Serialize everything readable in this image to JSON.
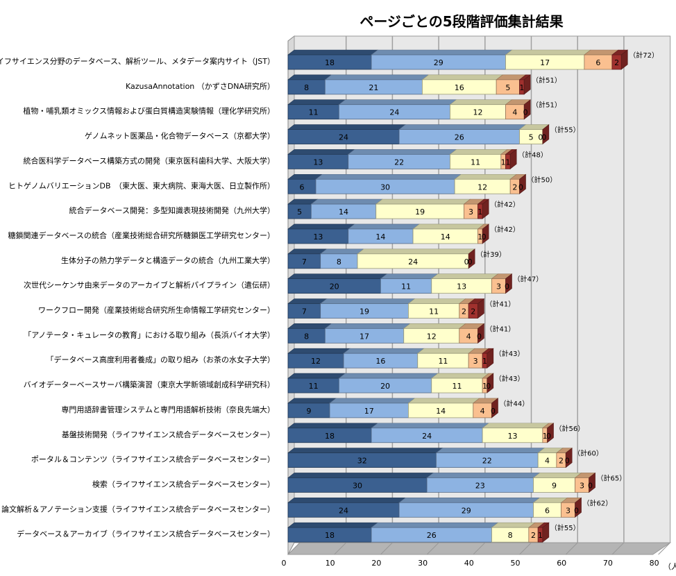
{
  "chart_data": {
    "type": "bar",
    "orientation": "horizontal",
    "stacked": true,
    "style": "3d",
    "title": "ページごとの5段階評価集計結果",
    "xlabel": "",
    "unit_label": "（人",
    "xlim": [
      0,
      80
    ],
    "xticks": [
      0,
      10,
      20,
      30,
      40,
      50,
      60,
      70,
      80
    ],
    "grid": true,
    "legend": "none",
    "total_prefix": "（計",
    "total_suffix": "）",
    "colors": [
      "#3b6090",
      "#8db3e2",
      "#ffffcc",
      "#fac090",
      "#a0312e"
    ],
    "categories": [
      "ライフサイエンス分野のデータベース、解析ツール、メタデータ案内サイト（JST）",
      "KazusaAnnotation （かずさDNA研究所）",
      "植物・哺乳類オミックス情報および蛋白質構造実験情報（理化学研究所）",
      "ゲノムネット医薬品・化合物データベース（京都大学）",
      "統合医科学データベース構築方式の開発（東京医科歯科大学、大阪大学）",
      "ヒトゲノムバリエーションDB　（東大医、東大病院、東海大医、日立製作所）",
      "統合データベース開発：多型知識表現技術開発（九州大学）",
      "糖鎖関連データベースの統合（産業技術総合研究所糖鎖医工学研究センター）",
      "生体分子の熱力学データと構造データの統合（九州工業大学）",
      "次世代シーケンサ由来データのアーカイブと解析パイプライン（遺伝研）",
      "ワークフロー開発（産業技術総合研究所生命情報工学研究センター）",
      "「アノテータ・キュレータの教育」における取り組み（長浜バイオ大学）",
      "「データベース高度利用者養成」の取り組み（お茶の水女子大学）",
      "バイオデーターベースサーバ構築演習（東京大学新領域創成科学研究科）",
      "専門用語辞書管理システムと専門用語解析技術（奈良先端大）",
      "基盤技術開発（ライフサイエンス統合データベースセンター）",
      "ポータル＆コンテンツ（ライフサイエンス統合データベースセンター）",
      "検索（ライフサイエンス統合データベースセンター）",
      "論文解析＆アノテーション支援（ライフサイエンス統合データベースセンター）",
      "データベース＆アーカイブ（ライフサイエンス統合データベースセンター）"
    ],
    "values": [
      [
        18,
        29,
        17,
        6,
        2
      ],
      [
        8,
        21,
        16,
        5,
        1
      ],
      [
        11,
        24,
        12,
        4,
        0
      ],
      [
        24,
        26,
        5,
        0,
        0
      ],
      [
        13,
        22,
        11,
        1,
        1
      ],
      [
        6,
        30,
        12,
        2,
        0
      ],
      [
        5,
        14,
        19,
        3,
        1
      ],
      [
        13,
        14,
        14,
        1,
        0
      ],
      [
        7,
        8,
        24,
        0,
        0
      ],
      [
        20,
        11,
        13,
        3,
        0
      ],
      [
        7,
        19,
        11,
        2,
        2
      ],
      [
        8,
        17,
        12,
        4,
        0
      ],
      [
        12,
        16,
        11,
        3,
        1
      ],
      [
        11,
        20,
        11,
        1,
        0
      ],
      [
        9,
        17,
        14,
        4,
        0
      ],
      [
        18,
        24,
        13,
        1,
        0
      ],
      [
        32,
        22,
        4,
        2,
        0
      ],
      [
        30,
        23,
        9,
        3,
        0
      ],
      [
        24,
        29,
        6,
        3,
        0
      ],
      [
        18,
        26,
        8,
        2,
        1
      ]
    ],
    "totals": [
      72,
      51,
      51,
      55,
      48,
      50,
      42,
      42,
      39,
      47,
      41,
      41,
      43,
      43,
      44,
      56,
      60,
      65,
      62,
      55
    ]
  }
}
